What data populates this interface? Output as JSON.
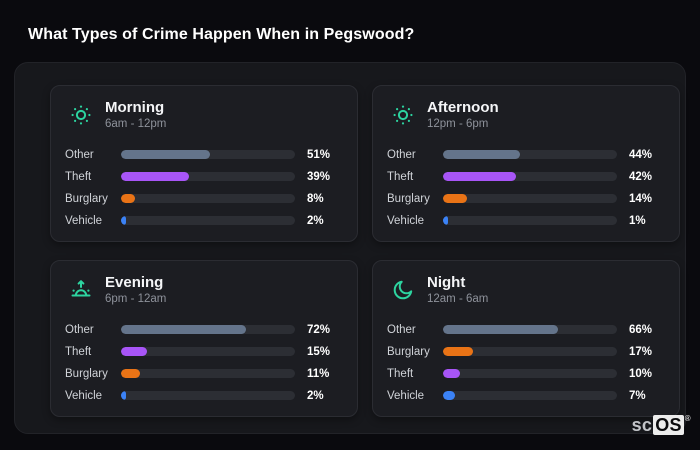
{
  "page_title": "What Types of Crime Happen When in Pegswood?",
  "watermark": {
    "prefix": "sc",
    "suffix": "OS",
    "registered": "®"
  },
  "colors": {
    "accent_icon": "#2dd4a0",
    "page_background": "#0a0a0e",
    "panel_background": "#17181c",
    "card_background": "#1c1d22",
    "bar_track": "#2c2e34",
    "categories": {
      "Other": "#64748b",
      "Theft": "#a855f7",
      "Burglary": "#e97316",
      "Vehicle": "#3b82f6"
    }
  },
  "chart_data": [
    {
      "type": "bar",
      "title": "Morning",
      "subtitle": "6am - 12pm",
      "icon": "sun-icon",
      "unit": "%",
      "xlim": [
        0,
        100
      ],
      "categories": [
        "Other",
        "Theft",
        "Burglary",
        "Vehicle"
      ],
      "values": [
        51,
        39,
        8,
        2
      ]
    },
    {
      "type": "bar",
      "title": "Afternoon",
      "subtitle": "12pm - 6pm",
      "icon": "sun-icon",
      "unit": "%",
      "xlim": [
        0,
        100
      ],
      "categories": [
        "Other",
        "Theft",
        "Burglary",
        "Vehicle"
      ],
      "values": [
        44,
        42,
        14,
        1
      ]
    },
    {
      "type": "bar",
      "title": "Evening",
      "subtitle": "6pm - 12am",
      "icon": "sunrise-icon",
      "unit": "%",
      "xlim": [
        0,
        100
      ],
      "categories": [
        "Other",
        "Theft",
        "Burglary",
        "Vehicle"
      ],
      "values": [
        72,
        15,
        11,
        2
      ]
    },
    {
      "type": "bar",
      "title": "Night",
      "subtitle": "12am - 6am",
      "icon": "moon-icon",
      "unit": "%",
      "xlim": [
        0,
        100
      ],
      "categories": [
        "Other",
        "Burglary",
        "Theft",
        "Vehicle"
      ],
      "values": [
        66,
        17,
        10,
        7
      ]
    }
  ]
}
